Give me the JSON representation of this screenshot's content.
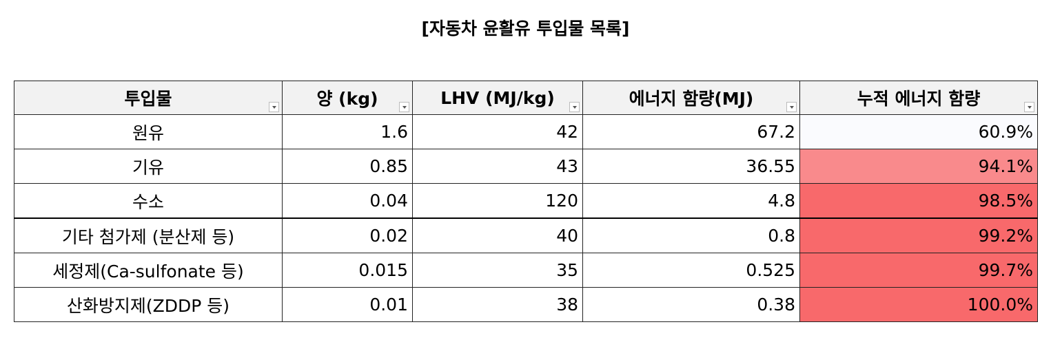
{
  "title": "[자동차 윤활유 투입물 목록]",
  "table": {
    "header": [
      "투입물",
      "양 (kg)",
      "LHV (MJ/kg)",
      "에너지 함량(MJ)",
      "누적 에너지 함량"
    ],
    "rows": [
      [
        "원유",
        "1.6",
        "42",
        "67.2",
        "60.9%"
      ],
      [
        "기유",
        "0.85",
        "43",
        "36.55",
        "94.1%"
      ],
      [
        "수소",
        "0.04",
        "120",
        "4.8",
        "98.5%"
      ],
      [
        "기타 첨가제 (분산제 등)",
        "0.02",
        "40",
        "0.8",
        "99.2%"
      ],
      [
        "세정제(Ca-sulfonate 등)",
        "0.015",
        "35",
        "0.525",
        "99.7%"
      ],
      [
        "산화방지제(ZDDP 등)",
        "0.01",
        "38",
        "0.38",
        "100.0%"
      ]
    ]
  }
}
